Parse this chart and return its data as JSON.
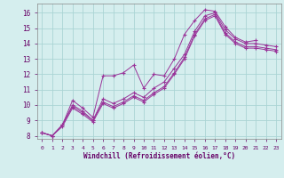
{
  "xlabel": "Windchill (Refroidissement éolien,°C)",
  "background_color": "#d5eeee",
  "grid_color": "#aad4d4",
  "line_color": "#993399",
  "xlim": [
    -0.5,
    23.5
  ],
  "ylim": [
    7.8,
    16.6
  ],
  "xticks": [
    0,
    1,
    2,
    3,
    4,
    5,
    6,
    7,
    8,
    9,
    10,
    11,
    12,
    13,
    14,
    15,
    16,
    17,
    18,
    19,
    20,
    21,
    22,
    23
  ],
  "yticks": [
    8,
    9,
    10,
    11,
    12,
    13,
    14,
    15,
    16
  ],
  "series": [
    {
      "x": [
        0,
        1,
        2,
        3,
        4,
        5,
        6,
        7,
        8,
        9,
        10,
        11,
        12,
        13,
        14,
        15,
        16,
        17,
        18,
        19,
        20,
        21
      ],
      "y": [
        8.2,
        8.0,
        8.7,
        10.3,
        9.8,
        9.2,
        11.9,
        11.9,
        12.1,
        12.6,
        11.1,
        12.0,
        11.9,
        13.0,
        14.6,
        15.5,
        16.2,
        16.1,
        15.1,
        14.4,
        14.1,
        14.2
      ]
    },
    {
      "x": [
        0,
        1,
        2,
        3,
        4,
        5,
        6,
        7,
        8,
        9,
        10,
        11,
        12,
        13,
        14,
        15,
        16,
        17,
        18,
        19,
        20,
        21,
        22,
        23
      ],
      "y": [
        8.2,
        8.0,
        8.7,
        10.0,
        9.6,
        9.0,
        10.4,
        10.1,
        10.4,
        10.8,
        10.5,
        11.1,
        11.5,
        12.4,
        13.3,
        14.8,
        15.8,
        16.0,
        14.9,
        14.3,
        14.0,
        14.0,
        13.9,
        13.8
      ]
    },
    {
      "x": [
        0,
        1,
        2,
        3,
        4,
        5,
        6,
        7,
        8,
        9,
        10,
        11,
        12,
        13,
        14,
        15,
        16,
        17,
        18,
        19,
        20,
        21,
        22,
        23
      ],
      "y": [
        8.2,
        8.0,
        8.7,
        9.9,
        9.5,
        9.0,
        10.2,
        9.9,
        10.2,
        10.6,
        10.3,
        10.8,
        11.2,
        12.1,
        13.1,
        14.6,
        15.6,
        15.9,
        14.7,
        14.1,
        13.8,
        13.8,
        13.7,
        13.6
      ]
    },
    {
      "x": [
        0,
        1,
        2,
        3,
        4,
        5,
        6,
        7,
        8,
        9,
        10,
        11,
        12,
        13,
        14,
        15,
        16,
        17,
        18,
        19,
        20,
        21,
        22,
        23
      ],
      "y": [
        8.2,
        8.0,
        8.6,
        9.8,
        9.4,
        8.9,
        10.1,
        9.8,
        10.1,
        10.5,
        10.2,
        10.7,
        11.1,
        12.0,
        13.0,
        14.5,
        15.5,
        15.8,
        14.6,
        14.0,
        13.7,
        13.7,
        13.6,
        13.5
      ]
    }
  ]
}
